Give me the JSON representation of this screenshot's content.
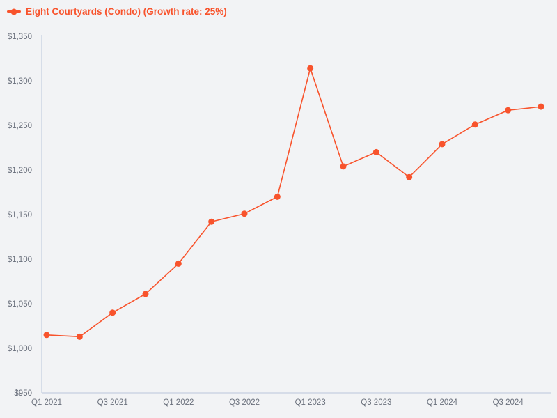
{
  "colors": {
    "series": "#f8532c",
    "axis_line": "#c5cfe0",
    "tick_text": "#6a707c",
    "background": "#f2f3f5"
  },
  "chart_data": {
    "type": "line",
    "title": "",
    "legend_position": "top-left",
    "grid": false,
    "marker": "filled-circle",
    "x": [
      "Q1 2021",
      "Q2 2021",
      "Q3 2021",
      "Q4 2021",
      "Q1 2022",
      "Q2 2022",
      "Q3 2022",
      "Q4 2022",
      "Q1 2023",
      "Q2 2023",
      "Q3 2023",
      "Q4 2023",
      "Q1 2024",
      "Q2 2024",
      "Q3 2024",
      "Q4 2024"
    ],
    "series": [
      {
        "name": "Eight Courtyards (Condo) (Growth rate: 25%)",
        "values": [
          1015,
          1013,
          1040,
          1061,
          1095,
          1142,
          1151,
          1170,
          1314,
          1204,
          1220,
          1192,
          1229,
          1251,
          1267,
          1271
        ]
      }
    ],
    "x_tick_labels": [
      "Q1 2021",
      "Q3 2021",
      "Q1 2022",
      "Q3 2022",
      "Q1 2023",
      "Q3 2023",
      "Q1 2024",
      "Q3 2024"
    ],
    "x_tick_every": 2,
    "y_ticks": [
      950,
      1000,
      1050,
      1100,
      1150,
      1200,
      1250,
      1300,
      1350
    ],
    "y_tick_labels": [
      "$950",
      "$1,000",
      "$1,050",
      "$1,100",
      "$1,150",
      "$1,200",
      "$1,250",
      "$1,300",
      "$1,350"
    ],
    "ylim": [
      950,
      1350
    ]
  }
}
